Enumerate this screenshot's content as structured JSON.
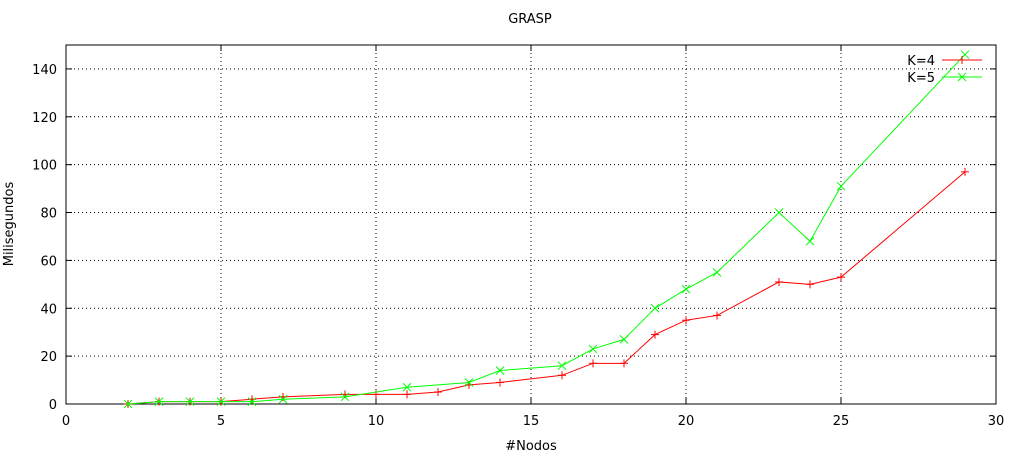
{
  "chart_data": {
    "type": "line",
    "title": "GRASP",
    "xlabel": "#Nodos",
    "ylabel": "Milisegundos",
    "xlim": [
      0,
      30
    ],
    "ylim": [
      0,
      150
    ],
    "xticks": [
      0,
      5,
      10,
      15,
      20,
      25,
      30
    ],
    "yticks": [
      0,
      20,
      40,
      60,
      80,
      100,
      120,
      140
    ],
    "grid": true,
    "legend_position": "top-right",
    "series": [
      {
        "name": "K=4",
        "color": "#ff0000",
        "marker": "plus",
        "x": [
          2,
          3,
          4,
          5,
          6,
          7,
          9,
          10,
          11,
          12,
          13,
          14,
          16,
          17,
          18,
          19,
          20,
          21,
          23,
          24,
          25,
          29
        ],
        "y": [
          0,
          1,
          1,
          1,
          2,
          3,
          4,
          4,
          4,
          5,
          8,
          9,
          12,
          17,
          17,
          29,
          35,
          37,
          51,
          50,
          53,
          97
        ]
      },
      {
        "name": "K=5",
        "color": "#00ff00",
        "marker": "cross",
        "x": [
          2,
          3,
          4,
          5,
          6,
          7,
          9,
          11,
          13,
          14,
          16,
          17,
          18,
          19,
          20,
          21,
          23,
          24,
          25,
          29
        ],
        "y": [
          0,
          1,
          1,
          1,
          1,
          2,
          3,
          7,
          9,
          14,
          16,
          23,
          27,
          40,
          48,
          55,
          80,
          68,
          91,
          146
        ]
      }
    ]
  }
}
